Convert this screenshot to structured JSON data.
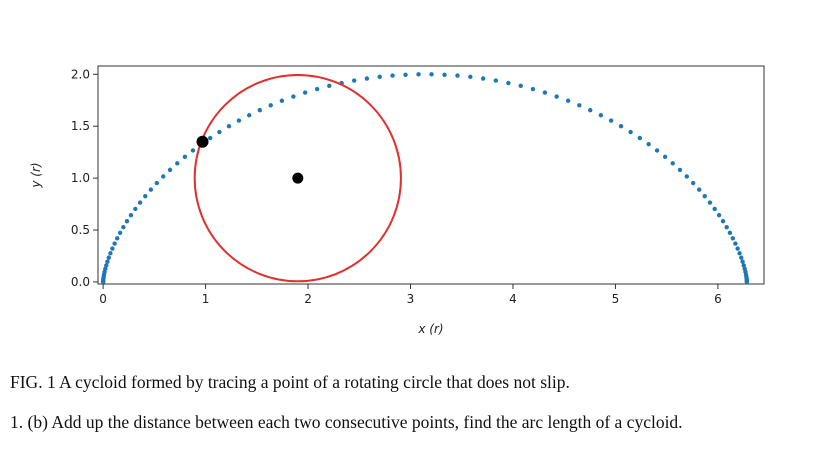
{
  "chart_data": {
    "type": "scatter",
    "xlabel": "x (r)",
    "ylabel": "y (r)",
    "xlim": [
      -0.05,
      6.45
    ],
    "ylim": [
      -0.02,
      2.08
    ],
    "xticks": [
      {
        "value": 0,
        "label": "0"
      },
      {
        "value": 1,
        "label": "1"
      },
      {
        "value": 2,
        "label": "2"
      },
      {
        "value": 3,
        "label": "3"
      },
      {
        "value": 4,
        "label": "4"
      },
      {
        "value": 5,
        "label": "5"
      },
      {
        "value": 6,
        "label": "6"
      }
    ],
    "yticks": [
      {
        "value": 0.0,
        "label": "0.0"
      },
      {
        "value": 0.5,
        "label": "0.5"
      },
      {
        "value": 1.0,
        "label": "1.0"
      },
      {
        "value": 1.5,
        "label": "1.5"
      },
      {
        "value": 2.0,
        "label": "2.0"
      }
    ],
    "series": [
      {
        "kind": "cycloid-points",
        "radius": 1,
        "theta_range": [
          0,
          6.2832
        ],
        "points": 100,
        "color": "#1f77b4"
      }
    ],
    "rolling_circle": {
      "center": [
        1.9,
        1.0
      ],
      "radius": 1.0,
      "color": "#e03030"
    },
    "circle_center_point": {
      "x": 1.9,
      "y": 1.0,
      "color": "#000000"
    },
    "tracing_point": {
      "x": 0.97,
      "y": 1.35,
      "color": "#000000"
    },
    "grid": false,
    "legend": "none"
  },
  "captions": {
    "figure": "FIG. 1 A cycloid formed by tracing a point of a rotating circle that does not slip.",
    "question": "1. (b) Add up the distance between each two consecutive points, find the arc length of a cycloid."
  }
}
